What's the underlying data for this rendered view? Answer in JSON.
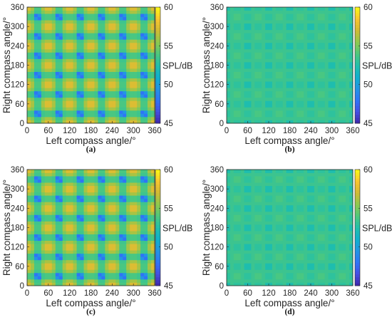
{
  "figure": {
    "panels": [
      {
        "label": "(a)",
        "pattern": "strong"
      },
      {
        "label": "(b)",
        "pattern": "flat"
      },
      {
        "label": "(c)",
        "pattern": "strong"
      },
      {
        "label": "(d)",
        "pattern": "flat"
      }
    ]
  },
  "chart_data": [
    {
      "type": "heatmap",
      "panel": "(a)",
      "xlabel": "Left compass angle/°",
      "ylabel": "Right compass angle/°",
      "xlim": [
        0,
        360
      ],
      "ylim": [
        0,
        360
      ],
      "xticks": [
        0,
        60,
        120,
        180,
        240,
        300,
        360
      ],
      "yticks": [
        0,
        60,
        120,
        180,
        240,
        300,
        360
      ],
      "colorbar": {
        "label": "SPL/dB",
        "range": [
          45,
          60
        ],
        "ticks": [
          45,
          50,
          55,
          60
        ],
        "colormap": "parula"
      },
      "grid_step_deg": 10,
      "pattern_period_deg": 60,
      "approx_max_SPL_dB": 58,
      "approx_min_SPL_dB": 47
    },
    {
      "type": "heatmap",
      "panel": "(b)",
      "xlabel": "Left compass angle/°",
      "ylabel": "Right compass angle/°",
      "xlim": [
        0,
        360
      ],
      "ylim": [
        0,
        360
      ],
      "xticks": [
        0,
        60,
        120,
        180,
        240,
        300,
        360
      ],
      "yticks": [
        0,
        60,
        120,
        180,
        240,
        300,
        360
      ],
      "colorbar": {
        "label": "SPL/dB",
        "range": [
          45,
          60
        ],
        "ticks": [
          45,
          50,
          55,
          60
        ],
        "colormap": "parula"
      },
      "grid_step_deg": 10,
      "pattern_period_deg": 60,
      "approx_background_SPL_dB": 53,
      "approx_min_SPL_dB": 45
    },
    {
      "type": "heatmap",
      "panel": "(c)",
      "xlabel": "Left compass angle/°",
      "ylabel": "Right compass angle/°",
      "xlim": [
        0,
        360
      ],
      "ylim": [
        0,
        360
      ],
      "xticks": [
        0,
        60,
        120,
        180,
        240,
        300,
        360
      ],
      "yticks": [
        0,
        60,
        120,
        180,
        240,
        300,
        360
      ],
      "colorbar": {
        "label": "SPL/dB",
        "range": [
          45,
          60
        ],
        "ticks": [
          45,
          50,
          55,
          60
        ],
        "colormap": "parula"
      },
      "grid_step_deg": 10,
      "pattern_period_deg": 60,
      "approx_max_SPL_dB": 58,
      "approx_min_SPL_dB": 47
    },
    {
      "type": "heatmap",
      "panel": "(d)",
      "xlabel": "Left compass angle/°",
      "ylabel": "Right compass angle/°",
      "xlim": [
        0,
        360
      ],
      "ylim": [
        0,
        360
      ],
      "xticks": [
        0,
        60,
        120,
        180,
        240,
        300,
        360
      ],
      "yticks": [
        0,
        60,
        120,
        180,
        240,
        300,
        360
      ],
      "colorbar": {
        "label": "SPL/dB",
        "range": [
          45,
          60
        ],
        "ticks": [
          45,
          50,
          55,
          60
        ],
        "colormap": "parula"
      },
      "grid_step_deg": 10,
      "pattern_period_deg": 60,
      "approx_background_SPL_dB": 53,
      "approx_min_SPL_dB": 45
    }
  ]
}
